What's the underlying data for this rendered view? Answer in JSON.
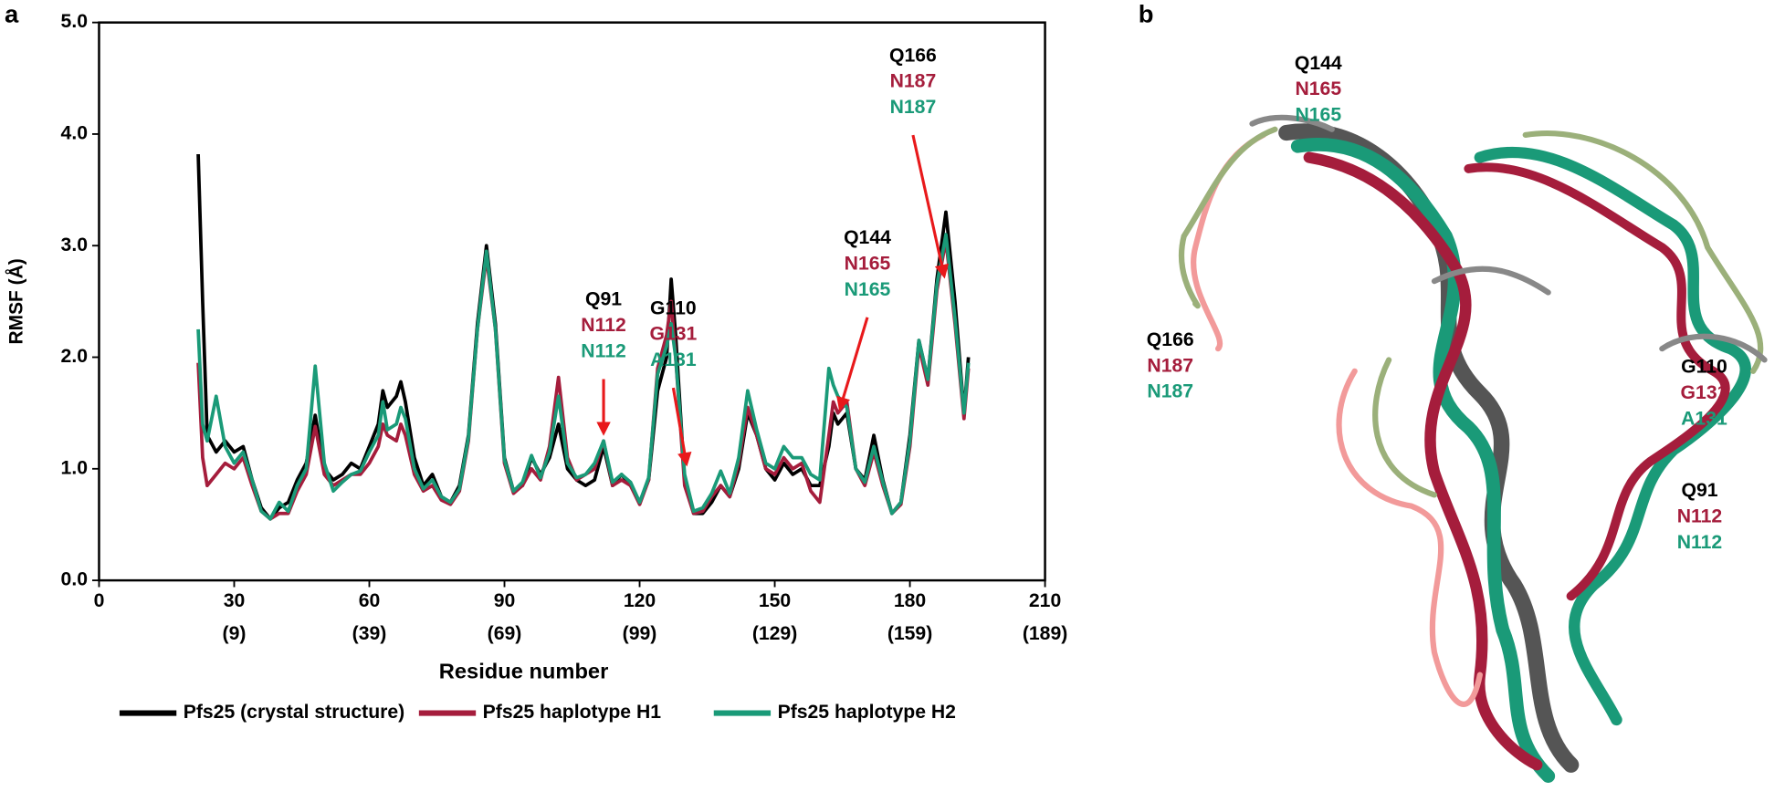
{
  "panel_labels": [
    "a",
    "b"
  ],
  "chart_data": {
    "type": "line",
    "x_label": "Residue number",
    "y_label": "RMSF (Å)",
    "xlim": [
      0,
      210
    ],
    "xticks": [
      0,
      30,
      60,
      90,
      120,
      150,
      180,
      210
    ],
    "xtick_secondary_labels": [
      null,
      "(9)",
      "(39)",
      "(69)",
      "(99)",
      "(129)",
      "(159)",
      "(189)"
    ],
    "ylim": [
      0,
      5
    ],
    "yticks": [
      {
        "value": 0,
        "label": "0.0"
      },
      {
        "value": 1,
        "label": "1.0"
      },
      {
        "value": 2,
        "label": "2.0"
      },
      {
        "value": 3,
        "label": "3.0"
      },
      {
        "value": 4,
        "label": "4.0"
      },
      {
        "value": 5,
        "label": "5.0"
      }
    ],
    "x": [
      22,
      23,
      24,
      26,
      28,
      30,
      32,
      34,
      36,
      38,
      40,
      42,
      44,
      46,
      48,
      50,
      52,
      54,
      56,
      58,
      60,
      62,
      63,
      64,
      66,
      67,
      68,
      70,
      72,
      74,
      76,
      78,
      80,
      82,
      84,
      86,
      88,
      90,
      92,
      94,
      96,
      98,
      100,
      102,
      104,
      106,
      108,
      110,
      112,
      114,
      116,
      118,
      120,
      122,
      124,
      126,
      127,
      128,
      130,
      132,
      134,
      136,
      138,
      140,
      142,
      144,
      146,
      148,
      150,
      152,
      154,
      156,
      158,
      160,
      162,
      163,
      164,
      166,
      168,
      170,
      172,
      174,
      176,
      178,
      180,
      182,
      184,
      186,
      188,
      190,
      192,
      193
    ],
    "series": [
      {
        "name": "Pfs25 (crystal structure)",
        "color": "#000000",
        "values": [
          3.82,
          2.5,
          1.3,
          1.15,
          1.25,
          1.15,
          1.2,
          0.9,
          0.65,
          0.55,
          0.65,
          0.7,
          0.9,
          1.05,
          1.48,
          1.0,
          0.9,
          0.95,
          1.05,
          1.0,
          1.2,
          1.4,
          1.7,
          1.55,
          1.65,
          1.78,
          1.6,
          1.1,
          0.85,
          0.95,
          0.75,
          0.7,
          0.85,
          1.3,
          2.3,
          3.0,
          2.3,
          1.1,
          0.8,
          0.85,
          1.1,
          0.95,
          1.1,
          1.4,
          1.0,
          0.9,
          0.85,
          0.9,
          1.2,
          0.85,
          0.95,
          0.85,
          0.7,
          0.9,
          1.7,
          2.0,
          2.7,
          2.2,
          0.9,
          0.6,
          0.6,
          0.7,
          0.85,
          0.75,
          1.0,
          1.5,
          1.3,
          1.0,
          0.9,
          1.05,
          0.95,
          1.0,
          0.85,
          0.85,
          1.2,
          1.5,
          1.4,
          1.5,
          1.0,
          0.9,
          1.3,
          0.9,
          0.6,
          0.7,
          1.3,
          2.15,
          1.8,
          2.7,
          3.3,
          2.5,
          1.5,
          2.0
        ]
      },
      {
        "name": "Pfs25 haplotype H1",
        "color": "#a51d3c",
        "values": [
          1.95,
          1.1,
          0.85,
          0.95,
          1.05,
          1.0,
          1.1,
          0.85,
          0.62,
          0.55,
          0.6,
          0.6,
          0.8,
          0.95,
          1.38,
          0.95,
          0.85,
          0.9,
          0.95,
          0.95,
          1.05,
          1.2,
          1.4,
          1.3,
          1.25,
          1.4,
          1.3,
          0.95,
          0.8,
          0.85,
          0.72,
          0.68,
          0.8,
          1.25,
          2.25,
          2.9,
          2.25,
          1.05,
          0.78,
          0.85,
          1.0,
          0.9,
          1.2,
          1.82,
          1.1,
          0.9,
          0.95,
          1.0,
          1.25,
          0.85,
          0.9,
          0.85,
          0.68,
          0.9,
          1.9,
          2.2,
          2.5,
          2.0,
          0.85,
          0.6,
          0.62,
          0.75,
          0.85,
          0.75,
          1.05,
          1.55,
          1.3,
          1.0,
          0.95,
          1.1,
          1.0,
          1.05,
          0.8,
          0.7,
          1.3,
          1.6,
          1.5,
          1.6,
          1.0,
          0.85,
          1.15,
          0.85,
          0.6,
          0.68,
          1.2,
          2.1,
          1.75,
          2.6,
          3.05,
          2.3,
          1.45,
          1.9
        ]
      },
      {
        "name": "Pfs25 haplotype H2",
        "color": "#1a9a78",
        "values": [
          2.25,
          1.4,
          1.25,
          1.65,
          1.2,
          1.05,
          1.15,
          0.9,
          0.62,
          0.55,
          0.7,
          0.62,
          0.85,
          1.0,
          1.92,
          1.05,
          0.8,
          0.88,
          0.95,
          0.98,
          1.15,
          1.3,
          1.6,
          1.35,
          1.4,
          1.55,
          1.45,
          1.0,
          0.82,
          0.9,
          0.75,
          0.7,
          0.82,
          1.28,
          2.25,
          2.95,
          2.25,
          1.08,
          0.8,
          0.88,
          1.12,
          0.92,
          1.15,
          1.65,
          1.05,
          0.92,
          0.95,
          1.05,
          1.25,
          0.88,
          0.95,
          0.88,
          0.7,
          0.92,
          1.85,
          2.1,
          2.3,
          2.0,
          0.95,
          0.62,
          0.65,
          0.78,
          0.98,
          0.78,
          1.1,
          1.7,
          1.35,
          1.05,
          1.0,
          1.2,
          1.1,
          1.1,
          0.95,
          0.9,
          1.9,
          1.75,
          1.65,
          1.55,
          1.0,
          0.88,
          1.2,
          0.88,
          0.6,
          0.7,
          1.25,
          2.15,
          1.8,
          2.65,
          3.1,
          2.35,
          1.5,
          1.95
        ]
      }
    ],
    "annotations": [
      {
        "lines": [
          "Q91",
          "N112",
          "N112"
        ],
        "x": 112,
        "y": 1.3
      },
      {
        "lines": [
          "G110",
          "G131",
          "A131"
        ],
        "x": 130,
        "y": 1.02
      },
      {
        "lines": [
          "Q144",
          "N165",
          "N165"
        ],
        "x": 165,
        "y": 1.5
      },
      {
        "lines": [
          "Q166",
          "N187",
          "N187"
        ],
        "x": 187,
        "y": 2.68
      }
    ]
  },
  "structure": {
    "labels": [
      {
        "lines": [
          "Q144",
          "N165",
          "N165"
        ]
      },
      {
        "lines": [
          "Q166",
          "N187",
          "N187"
        ]
      },
      {
        "lines": [
          "G110",
          "G131",
          "A131"
        ]
      },
      {
        "lines": [
          "Q91",
          "N112",
          "N112"
        ]
      }
    ]
  }
}
